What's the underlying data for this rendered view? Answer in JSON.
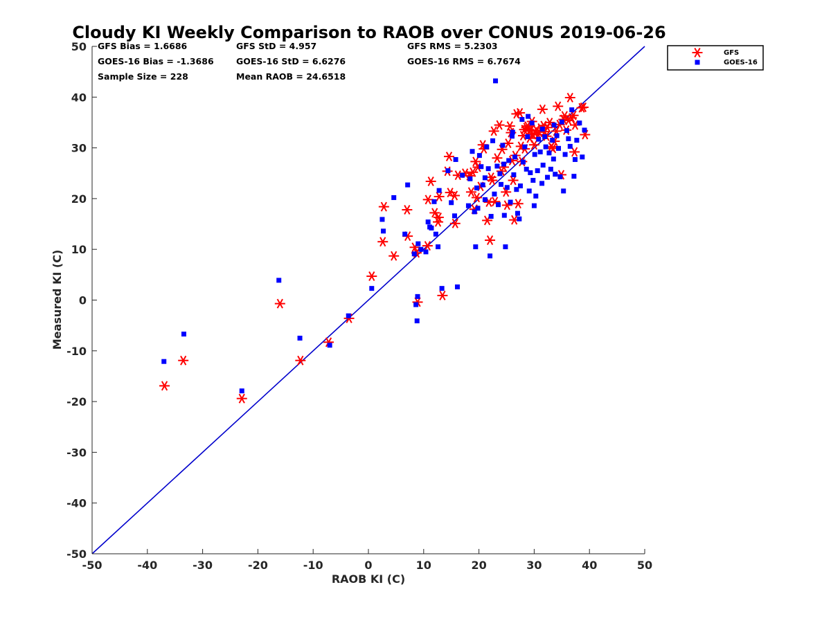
{
  "chart_data": {
    "type": "scatter",
    "title": "Cloudy KI Weekly Comparison to RAOB over CONUS 2019-06-26",
    "xlabel": "RAOB KI (C)",
    "ylabel": "Measured KI (C)",
    "xlim": [
      -50,
      50
    ],
    "ylim": [
      -50,
      50
    ],
    "xticks": [
      "-50",
      "-40",
      "-30",
      "-20",
      "-10",
      "0",
      "10",
      "20",
      "30",
      "40",
      "50"
    ],
    "yticks": [
      "-50",
      "-40",
      "-30",
      "-20",
      "-10",
      "0",
      "10",
      "20",
      "30",
      "40",
      "50"
    ],
    "reference_line": {
      "from": [
        -50,
        -50
      ],
      "to": [
        50,
        50
      ],
      "color": "#0000cc"
    },
    "legend_position": "outside top-right",
    "stats": {
      "gfs_bias": "GFS Bias = 1.6686",
      "gfs_std": "GFS StD = 4.957",
      "gfs_rms": "GFS RMS = 5.2303",
      "goes_bias": "GOES-16 Bias = -1.3686",
      "goes_std": "GOES-16 StD = 6.6276",
      "goes_rms": "GOES-16 RMS = 6.7674",
      "sample_size": "Sample Size = 228",
      "mean_raob": "Mean RAOB = 24.6518"
    },
    "series": [
      {
        "name": "GFS",
        "marker": "asterisk",
        "color": "#ff0000",
        "points": [
          [
            -36.9,
            -16.9
          ],
          [
            -33.5,
            -11.9
          ],
          [
            -22.9,
            -19.4
          ],
          [
            -16,
            -0.7
          ],
          [
            -12.3,
            -11.9
          ],
          [
            -7.2,
            -8.3
          ],
          [
            -3.5,
            -3.6
          ],
          [
            0.6,
            4.7
          ],
          [
            2.6,
            11.5
          ],
          [
            2.8,
            18.4
          ],
          [
            4.6,
            8.7
          ],
          [
            7,
            17.8
          ],
          [
            7.1,
            12.6
          ],
          [
            8.4,
            10.4
          ],
          [
            8.7,
            9.3
          ],
          [
            8.9,
            -0.4
          ],
          [
            10.7,
            10.7
          ],
          [
            10.8,
            19.8
          ],
          [
            11.3,
            23.4
          ],
          [
            12,
            17.2
          ],
          [
            12.6,
            15.4
          ],
          [
            12.7,
            16.3
          ],
          [
            12.8,
            20.4
          ],
          [
            13.4,
            0.9
          ],
          [
            14.3,
            25.4
          ],
          [
            14.6,
            28.3
          ],
          [
            14.8,
            21.2
          ],
          [
            15.6,
            20.6
          ],
          [
            15.7,
            15.1
          ],
          [
            16.2,
            24.6
          ],
          [
            17.5,
            25
          ],
          [
            18.3,
            24.5
          ],
          [
            18.6,
            21.3
          ],
          [
            18.9,
            25.2
          ],
          [
            19.2,
            17.9
          ],
          [
            19.4,
            27.3
          ],
          [
            19.6,
            20.2
          ],
          [
            19.8,
            26.2
          ],
          [
            20.3,
            22.4
          ],
          [
            20.7,
            30.6
          ],
          [
            20.9,
            29.8
          ],
          [
            21.5,
            15.7
          ],
          [
            21.8,
            19.3
          ],
          [
            22,
            11.8
          ],
          [
            22.2,
            24.2
          ],
          [
            22.4,
            23.6
          ],
          [
            22.7,
            33.3
          ],
          [
            22.9,
            19.4
          ],
          [
            23.3,
            28
          ],
          [
            23.7,
            34.5
          ],
          [
            24.1,
            25.4
          ],
          [
            24.2,
            29.7
          ],
          [
            24.5,
            26.2
          ],
          [
            24.9,
            21.3
          ],
          [
            25.1,
            18.7
          ],
          [
            25.3,
            30.9
          ],
          [
            25.6,
            34.3
          ],
          [
            25.8,
            33
          ],
          [
            26,
            27.5
          ],
          [
            26.2,
            23.6
          ],
          [
            26.4,
            15.8
          ],
          [
            26.6,
            28.5
          ],
          [
            26.8,
            36.7
          ],
          [
            27.1,
            19
          ],
          [
            27.4,
            36.9
          ],
          [
            27.6,
            30.3
          ],
          [
            27.8,
            27.3
          ],
          [
            28,
            32.4
          ],
          [
            28.2,
            33.6
          ],
          [
            28.3,
            29.8
          ],
          [
            28.6,
            34
          ],
          [
            28.8,
            34.3
          ],
          [
            29.1,
            33.3
          ],
          [
            29.2,
            31.9
          ],
          [
            29.4,
            33.5
          ],
          [
            29.6,
            35.2
          ],
          [
            29.8,
            32.6
          ],
          [
            30,
            30.6
          ],
          [
            30.2,
            32.9
          ],
          [
            30.4,
            33.5
          ],
          [
            30.7,
            32.6
          ],
          [
            30.9,
            33.1
          ],
          [
            31.2,
            33.9
          ],
          [
            31.5,
            37.6
          ],
          [
            31.7,
            34.4
          ],
          [
            31.9,
            33.2
          ],
          [
            32.2,
            32.3
          ],
          [
            32.4,
            34
          ],
          [
            32.8,
            35
          ],
          [
            33.1,
            30.2
          ],
          [
            33.4,
            29.9
          ],
          [
            33.7,
            31.3
          ],
          [
            34,
            33.3
          ],
          [
            34.3,
            38.2
          ],
          [
            34.6,
            34.6
          ],
          [
            34.9,
            24.7
          ],
          [
            35.3,
            35.6
          ],
          [
            35.5,
            36.3
          ],
          [
            35.8,
            33.5
          ],
          [
            36.2,
            35.4
          ],
          [
            36.5,
            39.9
          ],
          [
            36.8,
            35.9
          ],
          [
            37.1,
            36.4
          ],
          [
            37.3,
            29.2
          ],
          [
            37.4,
            34.5
          ],
          [
            38.6,
            37.9
          ],
          [
            38.9,
            38
          ],
          [
            39.2,
            32.6
          ]
        ]
      },
      {
        "name": "GOES-16",
        "marker": "square",
        "color": "#0000ff",
        "points": [
          [
            -37,
            -12.1
          ],
          [
            -33.4,
            -6.7
          ],
          [
            -22.9,
            -17.9
          ],
          [
            -16.2,
            3.9
          ],
          [
            -12.4,
            -7.5
          ],
          [
            -7,
            -8.9
          ],
          [
            -3.6,
            -3.1
          ],
          [
            0.6,
            2.3
          ],
          [
            2.5,
            15.9
          ],
          [
            2.7,
            13.6
          ],
          [
            4.6,
            20.2
          ],
          [
            6.6,
            13
          ],
          [
            7.1,
            22.7
          ],
          [
            8.3,
            9.1
          ],
          [
            8.6,
            -0.9
          ],
          [
            8.8,
            -4.1
          ],
          [
            8.9,
            0.7
          ],
          [
            9,
            11.1
          ],
          [
            9.5,
            10
          ],
          [
            10.4,
            9.5
          ],
          [
            10.8,
            15.4
          ],
          [
            11.1,
            14.4
          ],
          [
            11.4,
            14.2
          ],
          [
            11.9,
            19.4
          ],
          [
            12.2,
            13
          ],
          [
            12.6,
            10.5
          ],
          [
            12.8,
            21.6
          ],
          [
            13.3,
            2.3
          ],
          [
            14.4,
            25.5
          ],
          [
            15,
            19.2
          ],
          [
            15.6,
            16.6
          ],
          [
            15.8,
            27.7
          ],
          [
            16.1,
            2.6
          ],
          [
            17,
            24.6
          ],
          [
            18.1,
            18.6
          ],
          [
            18.4,
            23.9
          ],
          [
            18.8,
            29.3
          ],
          [
            19.2,
            17.4
          ],
          [
            19.4,
            10.5
          ],
          [
            19.6,
            22.1
          ],
          [
            19.8,
            18.1
          ],
          [
            20.1,
            28.5
          ],
          [
            20.4,
            26.3
          ],
          [
            20.7,
            22.7
          ],
          [
            21.1,
            19.8
          ],
          [
            21.4,
            30.2
          ],
          [
            21.7,
            25.9
          ],
          [
            22,
            8.7
          ],
          [
            22.2,
            16.5
          ],
          [
            22.5,
            31.4
          ],
          [
            22.8,
            20.9
          ],
          [
            23,
            43.2
          ],
          [
            23.3,
            26.4
          ],
          [
            23.5,
            18.8
          ],
          [
            23.8,
            24.9
          ],
          [
            24,
            22.8
          ],
          [
            24.3,
            30.5
          ],
          [
            24.6,
            16.7
          ],
          [
            24.8,
            10.5
          ],
          [
            25.1,
            22.2
          ],
          [
            25.4,
            27.5
          ],
          [
            25.7,
            19.3
          ],
          [
            26,
            32.3
          ],
          [
            26.3,
            24.7
          ],
          [
            26.5,
            28.2
          ],
          [
            26.8,
            21.8
          ],
          [
            27,
            17.1
          ],
          [
            27.3,
            16
          ],
          [
            27.5,
            22.5
          ],
          [
            27.8,
            35.6
          ],
          [
            28,
            27.2
          ],
          [
            28.3,
            30.2
          ],
          [
            28.6,
            25.8
          ],
          [
            28.8,
            32.2
          ],
          [
            29.1,
            21.5
          ],
          [
            29.3,
            25.1
          ],
          [
            29.6,
            34.9
          ],
          [
            29.8,
            23.6
          ],
          [
            30.1,
            28.7
          ],
          [
            30.3,
            20.5
          ],
          [
            30.6,
            25.5
          ],
          [
            30.8,
            31.7
          ],
          [
            31.1,
            29.2
          ],
          [
            31.4,
            23
          ],
          [
            31.6,
            26.6
          ],
          [
            31.9,
            32.2
          ],
          [
            32.1,
            30.2
          ],
          [
            32.4,
            24.2
          ],
          [
            32.7,
            29
          ],
          [
            33,
            25.8
          ],
          [
            33.3,
            31.5
          ],
          [
            33.5,
            27.8
          ],
          [
            33.8,
            24.8
          ],
          [
            34.1,
            32.4
          ],
          [
            34.4,
            29.9
          ],
          [
            34.7,
            24.3
          ],
          [
            35,
            35.1
          ],
          [
            35.3,
            21.5
          ],
          [
            35.6,
            28.7
          ],
          [
            35.9,
            33.4
          ],
          [
            36.2,
            31.8
          ],
          [
            36.5,
            30.3
          ],
          [
            36.8,
            37.5
          ],
          [
            37.2,
            24.4
          ],
          [
            37.4,
            27.7
          ],
          [
            37.7,
            31.5
          ],
          [
            38.2,
            34.9
          ],
          [
            38.7,
            28.2
          ],
          [
            39.1,
            33.5
          ],
          [
            26.1,
            33.1
          ],
          [
            28.9,
            36.2
          ],
          [
            30,
            18.6
          ],
          [
            31.5,
            33.7
          ],
          [
            33.6,
            34.5
          ],
          [
            24.5,
            26.8
          ],
          [
            21.1,
            24.1
          ]
        ]
      }
    ]
  }
}
